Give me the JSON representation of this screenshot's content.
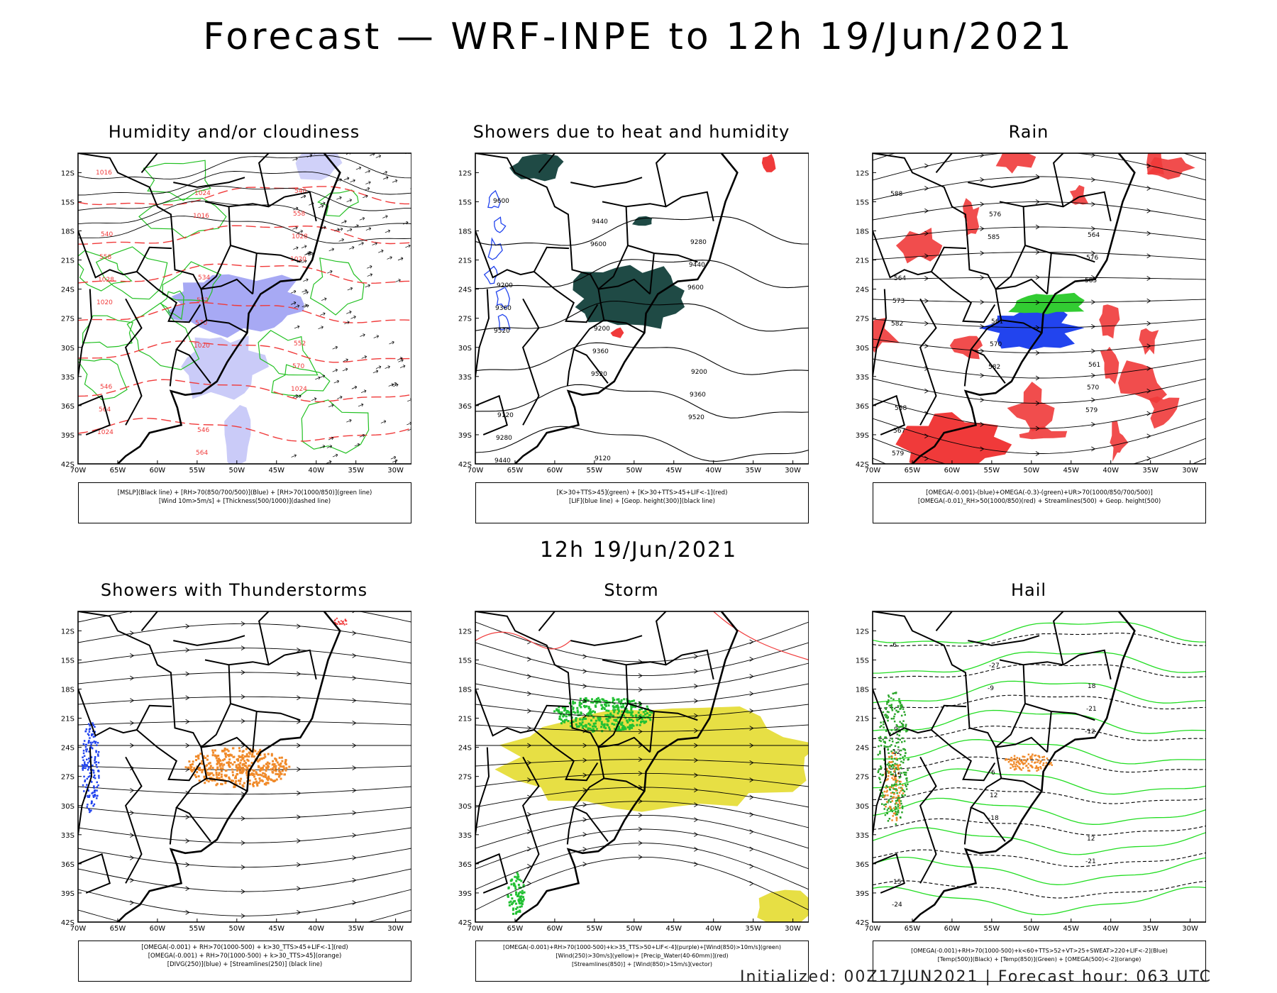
{
  "header": {
    "title": "Forecast — WRF-INPE to 12h 19/Jun/2021",
    "mid_title": "12h 19/Jun/2021",
    "footer": "Initialized: 00Z17JUN2021 | Forecast hour: 063 UTC"
  },
  "axes": {
    "lat_ticks": [
      "12S",
      "15S",
      "18S",
      "21S",
      "24S",
      "27S",
      "30S",
      "33S",
      "36S",
      "39S",
      "42S"
    ],
    "lon_ticks": [
      "70W",
      "65W",
      "60W",
      "55W",
      "50W",
      "45W",
      "40W",
      "35W",
      "30W"
    ]
  },
  "colors": {
    "blue_fill": "#8a8cf0",
    "green_line": "#22c022",
    "red_line": "#f03a3a",
    "dark_teal": "#1f4a45",
    "orange": "#f08a2a",
    "yellow": "#e4dc30",
    "blue_dots": "#2244ee"
  },
  "panels": [
    {
      "title": "Humidity and/or cloudiness",
      "legend": [
        "[MSLP](Black line) + [RH>70(850/700/500)](Blue) + [RH>70(1000/850)](green line)",
        "[Wind 10m>5m/s] + [Thickness(500/1000)](dashed line)"
      ],
      "labels": [
        "1016",
        "1016",
        "1020",
        "1020",
        "1020",
        "1024",
        "1024",
        "1024",
        "1028",
        "1028",
        "570",
        "570",
        "564",
        "564",
        "558",
        "558",
        "552",
        "552",
        "546",
        "546",
        "540",
        "540",
        "534"
      ]
    },
    {
      "title": "Showers due to heat and humidity",
      "legend": [
        "[K>30+TTS>45](green) + [K>30+TTS>45+LIF<-1](red)",
        "[LIF](blue line) + [Geop. height(300)](black line)"
      ],
      "labels": [
        "9600",
        "9600",
        "9600",
        "9520",
        "9520",
        "9520",
        "9440",
        "9440",
        "9440",
        "9360",
        "9360",
        "9360",
        "9280",
        "9280",
        "9280",
        "9200",
        "9200",
        "9200",
        "9120",
        "9120"
      ]
    },
    {
      "title": "Rain",
      "legend": [
        "[OMEGA(-0.001)-(blue)+OMEGA(-0.3)-(green)+UR>70(1000/850/700/500)]",
        "[OMEGA(-0.01)_RH>50(1000/850)(red) + Streamlines(500) + Geop. height(500)"
      ],
      "labels": [
        "588",
        "585",
        "585",
        "582",
        "582",
        "579",
        "579",
        "576",
        "576",
        "573",
        "570",
        "570",
        "567",
        "567",
        "564",
        "564",
        "561",
        "561",
        "558"
      ]
    },
    {
      "title": "Showers with Thunderstorms",
      "legend": [
        "[OMEGA(-0.001) + RH>70(1000-500) + k>30_TTS>45+LIF<-1](red)",
        "[OMEGA(-0.001) + RH>70(1000-500) + k>30_TTS>45](orange)",
        "[DIVG(250)](blue) + [Streamlines(250)] (black line)"
      ],
      "labels": []
    },
    {
      "title": "Storm",
      "legend": [
        "[OMEGA(-0.001)+RH>70(1000-500)+k>35_TTS>50+LIF<-4](purple)+[Wind(850)>10m/s](green)",
        "[Wind(250)>30m/s](yellow)+ [Precip_Water(40-60mm)](red)",
        "[Streamlines(850)] + [Wind(850)>15m/s](vector)"
      ],
      "labels": []
    },
    {
      "title": "Hail",
      "legend": [
        "[OMEGA(-0.001)+RH>70(1000-500)+k<60+TTS>52+VT>25+SWEAT>220+LIF<-2](Blue)",
        "[Temp(500)](Black) + [Temp(850)](Green) + [OMEGA(500)<-2](orange)"
      ],
      "labels": [
        "-6",
        "-9",
        "-12",
        "-15",
        "-18",
        "-21",
        "-24",
        "-27",
        "-21",
        "12",
        "12",
        "12",
        "15",
        "15",
        "18",
        "9",
        "6"
      ]
    }
  ]
}
